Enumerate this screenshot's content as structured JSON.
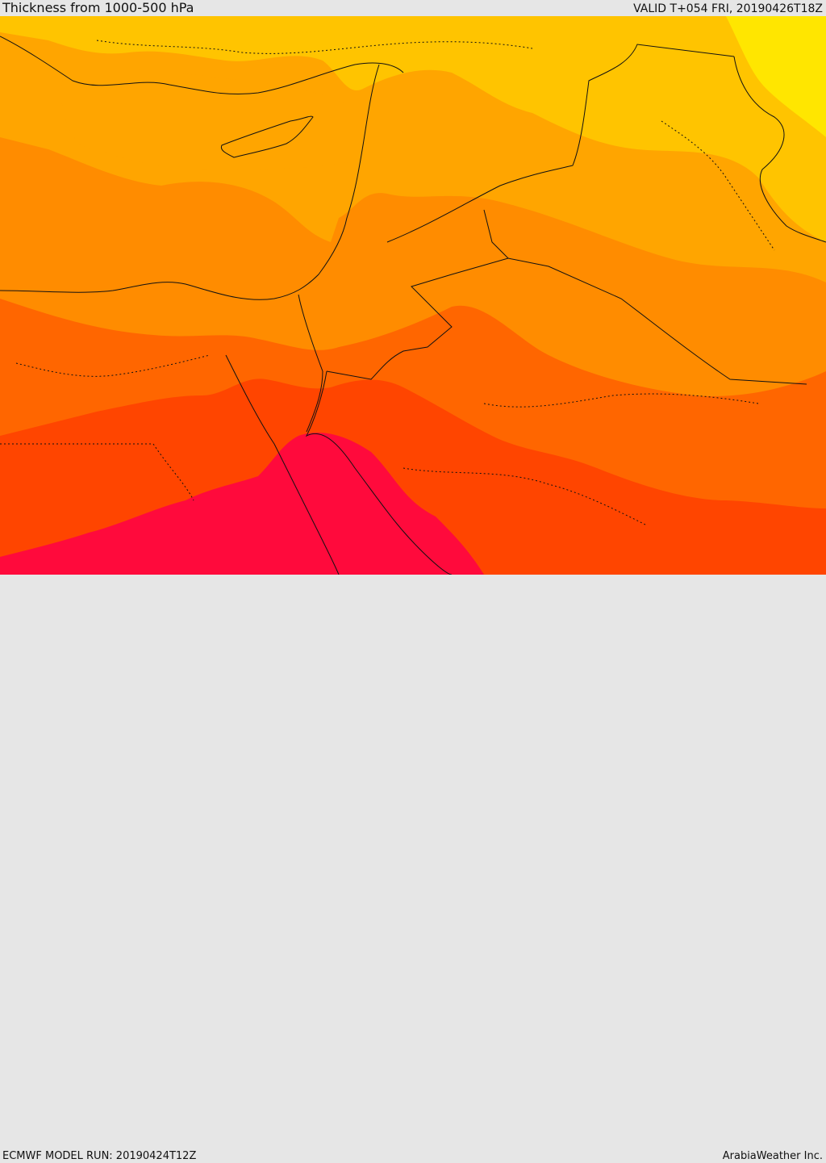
{
  "header": {
    "title": "Thickness from 1000-500 hPa",
    "valid": "VALID T+054 FRI, 20190426T18Z"
  },
  "footer": {
    "model_run": "ECMWF MODEL RUN: 20190424T12Z",
    "credit": "ArabiaWeather Inc."
  },
  "colors": {
    "band_1": "#ffe600",
    "band_2": "#ffc400",
    "band_3": "#ffa500",
    "band_4": "#ff8c00",
    "band_5": "#ff6600",
    "band_6": "#ff4500",
    "band_7": "#ff0a3c",
    "borders": "#111111"
  }
}
